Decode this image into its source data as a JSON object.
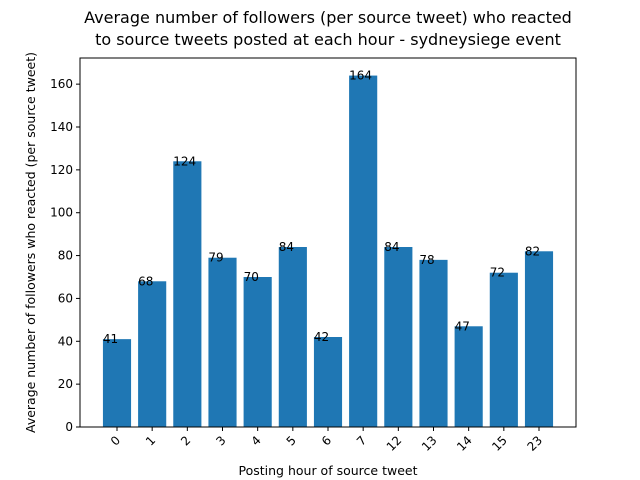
{
  "chart_data": {
    "type": "bar",
    "title_lines": [
      "Average number of followers (per source tweet) who reacted",
      "to source tweets posted at each hour - sydneysiege event"
    ],
    "xlabel": "Posting hour of source tweet",
    "ylabel": "Average number of followers who reacted (per source tweet)",
    "categories": [
      "0",
      "1",
      "2",
      "3",
      "4",
      "5",
      "6",
      "7",
      "12",
      "13",
      "14",
      "15",
      "23"
    ],
    "values": [
      41,
      68,
      124,
      79,
      70,
      84,
      42,
      164,
      84,
      78,
      47,
      72,
      82
    ],
    "data_labels": [
      "41",
      "68",
      "124",
      "79",
      "70",
      "84",
      "42",
      "164",
      "84",
      "78",
      "47",
      "72",
      "82"
    ],
    "ylim": [
      0,
      172.2
    ],
    "yticks": [
      0,
      20,
      40,
      60,
      80,
      100,
      120,
      140,
      160
    ],
    "bar_color": "#1f77b4",
    "grid": false,
    "legend": "none"
  }
}
